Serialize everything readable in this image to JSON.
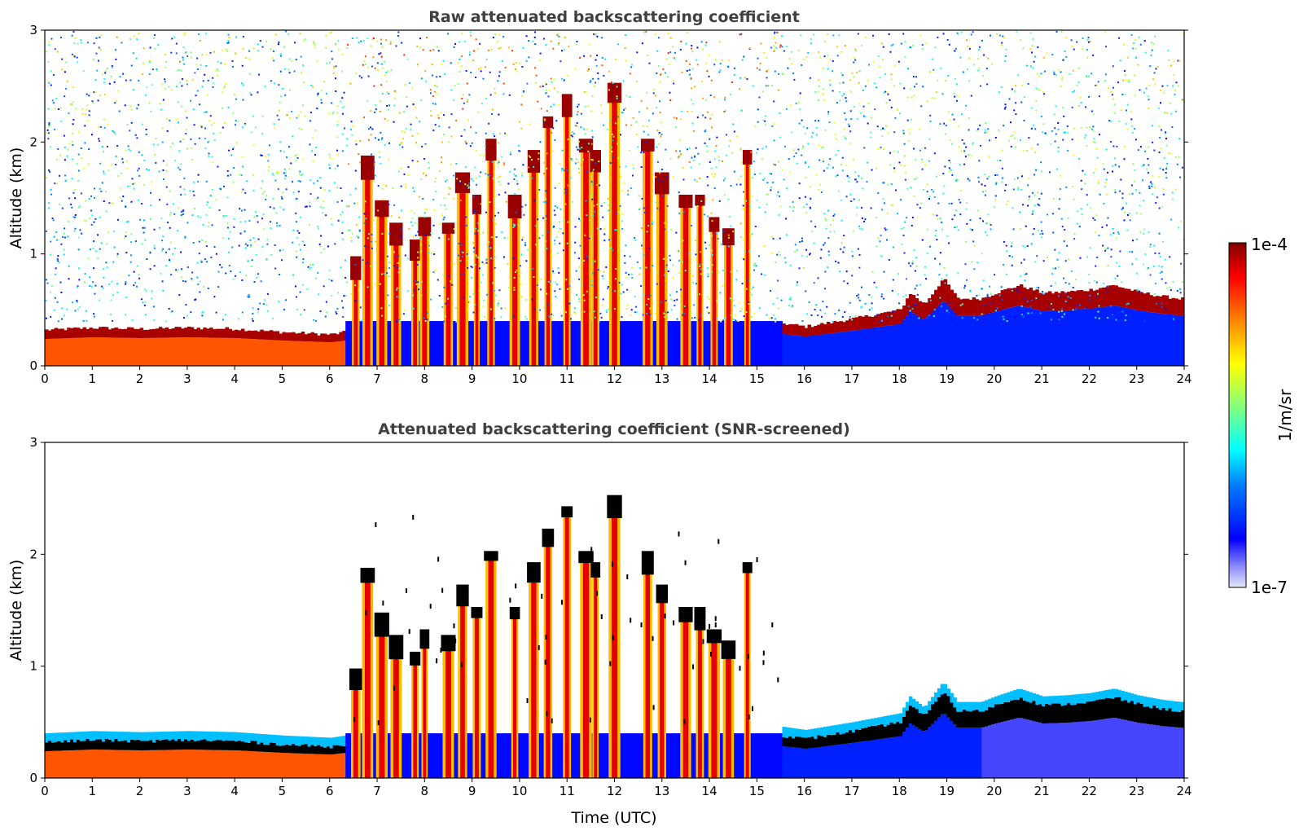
{
  "chart_data": [
    {
      "type": "heatmap",
      "title": "Raw attenuated backscattering coefficient",
      "xlabel": "",
      "ylabel": "Altitude (km)",
      "xlim": [
        0,
        24
      ],
      "ylim": [
        0,
        3
      ],
      "x_ticks": [
        "0",
        "1",
        "2",
        "3",
        "4",
        "5",
        "6",
        "7",
        "8",
        "9",
        "10",
        "11",
        "12",
        "13",
        "14",
        "15",
        "16",
        "17",
        "18",
        "19",
        "20",
        "21",
        "22",
        "23",
        "24"
      ],
      "y_ticks": [
        "0",
        "1",
        "2",
        "3"
      ],
      "colorscale": "jet (white below min)",
      "background_noise": true,
      "boundary_layer_top_km": [
        [
          0,
          0.32
        ],
        [
          1,
          0.34
        ],
        [
          2,
          0.33
        ],
        [
          3,
          0.34
        ],
        [
          4,
          0.33
        ],
        [
          5,
          0.3
        ],
        [
          6,
          0.28
        ],
        [
          6.3,
          0.3
        ],
        [
          15.5,
          0.38
        ],
        [
          16,
          0.35
        ],
        [
          17,
          0.42
        ],
        [
          18,
          0.5
        ],
        [
          18.2,
          0.65
        ],
        [
          18.5,
          0.55
        ],
        [
          18.9,
          0.78
        ],
        [
          19.2,
          0.6
        ],
        [
          19.7,
          0.6
        ],
        [
          20,
          0.65
        ],
        [
          20.5,
          0.72
        ],
        [
          21,
          0.65
        ],
        [
          21.5,
          0.66
        ],
        [
          22,
          0.68
        ],
        [
          22.5,
          0.72
        ],
        [
          23,
          0.66
        ],
        [
          23.5,
          0.62
        ],
        [
          23.9,
          0.6
        ]
      ],
      "cloud_plumes": [
        {
          "t": 6.55,
          "top": 0.95
        },
        {
          "t": 6.8,
          "top": 1.85
        },
        {
          "t": 7.1,
          "top": 1.45
        },
        {
          "t": 7.4,
          "top": 1.25
        },
        {
          "t": 7.8,
          "top": 1.1
        },
        {
          "t": 8.0,
          "top": 1.3
        },
        {
          "t": 8.5,
          "top": 1.25
        },
        {
          "t": 8.8,
          "top": 1.7
        },
        {
          "t": 9.1,
          "top": 1.5
        },
        {
          "t": 9.4,
          "top": 2.0
        },
        {
          "t": 9.9,
          "top": 1.5
        },
        {
          "t": 10.3,
          "top": 1.9
        },
        {
          "t": 10.6,
          "top": 2.2
        },
        {
          "t": 11.0,
          "top": 2.4
        },
        {
          "t": 11.4,
          "top": 2.0
        },
        {
          "t": 11.6,
          "top": 1.9
        },
        {
          "t": 12.0,
          "top": 2.5
        },
        {
          "t": 12.7,
          "top": 2.0
        },
        {
          "t": 13.0,
          "top": 1.7
        },
        {
          "t": 13.5,
          "top": 1.5
        },
        {
          "t": 13.8,
          "top": 1.5
        },
        {
          "t": 14.1,
          "top": 1.3
        },
        {
          "t": 14.4,
          "top": 1.2
        },
        {
          "t": 14.8,
          "top": 1.9
        }
      ]
    },
    {
      "type": "heatmap",
      "title": "Attenuated backscattering coefficient (SNR-screened)",
      "xlabel": "Time (UTC)",
      "ylabel": "Altitude (km)",
      "xlim": [
        0,
        24
      ],
      "ylim": [
        0,
        3
      ],
      "x_ticks": [
        "0",
        "1",
        "2",
        "3",
        "4",
        "5",
        "6",
        "7",
        "8",
        "9",
        "10",
        "11",
        "12",
        "13",
        "14",
        "15",
        "16",
        "17",
        "18",
        "19",
        "20",
        "21",
        "22",
        "23",
        "24"
      ],
      "y_ticks": [
        "0",
        "1",
        "2",
        "3"
      ],
      "colorscale": "jet, masked where SNR low; black at strong returns",
      "background_noise": false
    }
  ],
  "colorbar": {
    "label": "1/m/sr",
    "max_label": "1e-4",
    "min_label": "1e-7"
  },
  "colors": {
    "text_title": "#404040",
    "frame": "#000000"
  }
}
